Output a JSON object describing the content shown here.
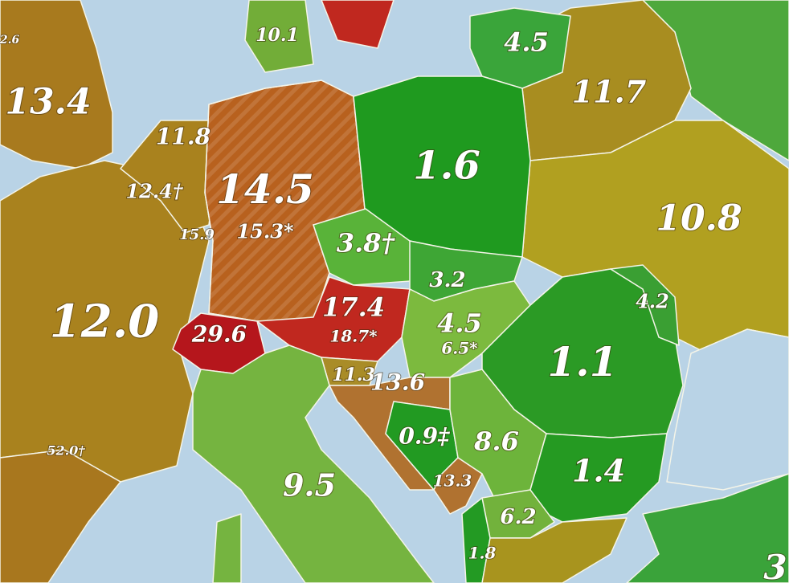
{
  "regions": [
    {
      "label": "2.6"
    },
    {
      "label": "10.1"
    },
    {
      "label": "4.5"
    },
    {
      "label": "13.4"
    },
    {
      "label": "11.7"
    },
    {
      "label": "11.8"
    },
    {
      "label": "1.6"
    },
    {
      "label": "12.4†"
    },
    {
      "label": "14.5",
      "note": "15.3*"
    },
    {
      "label": "10.8"
    },
    {
      "label": "15.9"
    },
    {
      "label": "3.8†"
    },
    {
      "label": "3.2"
    },
    {
      "label": "4.2"
    },
    {
      "label": "12.0"
    },
    {
      "label": "29.6"
    },
    {
      "label": "17.4",
      "note": "18.7*"
    },
    {
      "label": "4.5",
      "note": "6.5*"
    },
    {
      "label": "1.1"
    },
    {
      "label": "11.3"
    },
    {
      "label": "13.6"
    },
    {
      "label": "52.0†"
    },
    {
      "label": "0.9‡"
    },
    {
      "label": "8.6"
    },
    {
      "label": "1.4"
    },
    {
      "label": "9.5"
    },
    {
      "label": "13.3"
    },
    {
      "label": "6.2"
    },
    {
      "label": "1.8"
    },
    {
      "label": "3"
    }
  ]
}
